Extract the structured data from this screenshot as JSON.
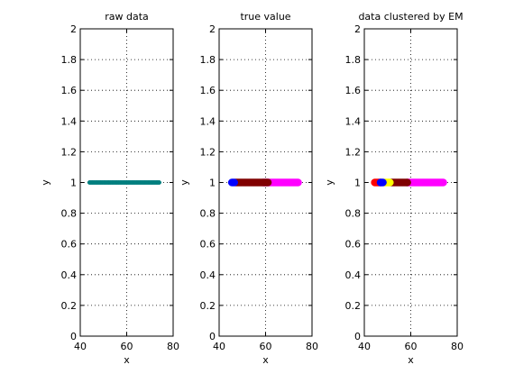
{
  "colors": {
    "raw": "#007f7f",
    "magenta": "#ff00ff",
    "darkred": "#800000",
    "red": "#ff0000",
    "yellow": "#ffff00",
    "blue": "#0000ff"
  },
  "chart_data": [
    {
      "type": "scatter",
      "title": "raw data",
      "xlabel": "x",
      "ylabel": "y",
      "xlim": [
        40,
        80
      ],
      "ylim": [
        0,
        2
      ],
      "xticks": [
        "40",
        "60",
        "80"
      ],
      "yticks": [
        "0",
        "0.2",
        "0.4",
        "0.6",
        "0.8",
        "1",
        "1.2",
        "1.4",
        "1.6",
        "1.8",
        "2"
      ],
      "grid": true,
      "series": [
        {
          "color": "#007f7f",
          "x_range": [
            44,
            74
          ],
          "y": 1
        }
      ]
    },
    {
      "type": "scatter",
      "title": "true value",
      "xlabel": "x",
      "ylabel": "y",
      "xlim": [
        40,
        80
      ],
      "ylim": [
        0,
        2
      ],
      "xticks": [
        "40",
        "60",
        "80"
      ],
      "yticks": [
        "0",
        "0.2",
        "0.4",
        "0.6",
        "0.8",
        "1",
        "1.2",
        "1.4",
        "1.6",
        "1.8",
        "2"
      ],
      "grid": true,
      "series": [
        {
          "color": "#ff00ff",
          "x_range": [
            59,
            74
          ],
          "y": 1
        },
        {
          "color": "#800000",
          "x_range": [
            47,
            61
          ],
          "y": 1
        },
        {
          "color": "#0000ff",
          "x_range": [
            45.5,
            46.5
          ],
          "y": 1
        }
      ]
    },
    {
      "type": "scatter",
      "title": "data clustered by EM",
      "xlabel": "x",
      "ylabel": "y",
      "xlim": [
        40,
        80
      ],
      "ylim": [
        0,
        2
      ],
      "xticks": [
        "40",
        "60",
        "80"
      ],
      "yticks": [
        "0",
        "0.2",
        "0.4",
        "0.6",
        "0.8",
        "1",
        "1.2",
        "1.4",
        "1.6",
        "1.8",
        "2"
      ],
      "grid": true,
      "series": [
        {
          "color": "#ff00ff",
          "x_range": [
            58.5,
            74
          ],
          "y": 1
        },
        {
          "color": "#800000",
          "x_range": [
            51.5,
            58.5
          ],
          "y": 1
        },
        {
          "color": "#ffff00",
          "x_range": [
            48.5,
            51
          ],
          "y": 1
        },
        {
          "color": "#ff0000",
          "x_range": [
            44.5,
            47
          ],
          "y": 1
        },
        {
          "color": "#0000ff",
          "x_range": [
            47,
            48
          ],
          "y": 1
        }
      ]
    }
  ]
}
